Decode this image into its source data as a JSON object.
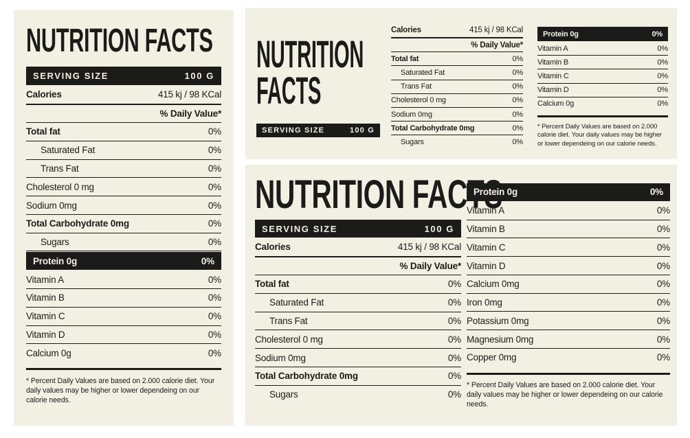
{
  "colors": {
    "page_bg": "#ffffff",
    "panel_bg": "#f2efe3",
    "ink": "#1b1b19",
    "bar_text": "#f4f1e4"
  },
  "left": {
    "title": "NUTRITION FACTS",
    "serving_label": "SERVING SIZE",
    "serving_value": "100 G",
    "calories_label": "Calories",
    "calories_value": "415 kj / 98 KCal",
    "daily_value_header": "% Daily Value*",
    "rows": [
      {
        "label": "Total fat",
        "value": "0%",
        "style": "bold"
      },
      {
        "label": "Saturated Fat",
        "value": "0%",
        "style": "indent"
      },
      {
        "label": "Trans Fat",
        "value": "0%",
        "style": "indent"
      },
      {
        "label": "Cholesterol 0 mg",
        "value": "0%",
        "style": ""
      },
      {
        "label": "Sodium 0mg",
        "value": "0%",
        "style": ""
      },
      {
        "label": "Total Carbohydrate 0mg",
        "value": "0%",
        "style": "bold"
      },
      {
        "label": "Sugars",
        "value": "0%",
        "style": "indent"
      },
      {
        "label": "Protein 0g",
        "value": "0%",
        "style": "inverted"
      },
      {
        "label": "Vitamin A",
        "value": "0%",
        "style": ""
      },
      {
        "label": "Vitamin B",
        "value": "0%",
        "style": ""
      },
      {
        "label": "Vitamin C",
        "value": "0%",
        "style": ""
      },
      {
        "label": "Vitamin D",
        "value": "0%",
        "style": ""
      },
      {
        "label": "Calcium 0g",
        "value": "0%",
        "style": ""
      }
    ],
    "footnote": "* Percent Daily Values are based on 2.000 calorie diet. Your daily values may be higher or lower dependeing on our calorie needs."
  },
  "top_right": {
    "title_line1": "NUTRITION",
    "title_line2": "FACTS",
    "serving_label": "SERVING SIZE",
    "serving_value": "100 G",
    "calories_label": "Calories",
    "calories_value": "415 kj / 98 KCal",
    "daily_value_header": "% Daily Value*",
    "mid_rows": [
      {
        "label": "Total fat",
        "value": "0%",
        "style": "bold"
      },
      {
        "label": "Saturated Fat",
        "value": "0%",
        "style": "indent"
      },
      {
        "label": "Trans Fat",
        "value": "0%",
        "style": "indent"
      },
      {
        "label": "Cholesterol 0 mg",
        "value": "0%",
        "style": ""
      },
      {
        "label": "Sodium 0mg",
        "value": "0%",
        "style": ""
      },
      {
        "label": "Total Carbohydrate 0mg",
        "value": "0%",
        "style": "bold"
      },
      {
        "label": "Sugars",
        "value": "0%",
        "style": "indent"
      }
    ],
    "right_rows": [
      {
        "label": "Protein 0g",
        "value": "0%",
        "style": "inverted"
      },
      {
        "label": "Vitamin A",
        "value": "0%",
        "style": ""
      },
      {
        "label": "Vitamin B",
        "value": "0%",
        "style": ""
      },
      {
        "label": "Vitamin C",
        "value": "0%",
        "style": ""
      },
      {
        "label": "Vitamin D",
        "value": "0%",
        "style": ""
      },
      {
        "label": "Calcium 0g",
        "value": "0%",
        "style": ""
      }
    ],
    "footnote": "* Percent Daily Values are based on 2.000 calorie diet. Your daily values may be higher or lower dependeing on our calorie needs."
  },
  "bottom_right": {
    "title": "NUTRITION FACTS",
    "serving_label": "SERVING SIZE",
    "serving_value": "100 G",
    "calories_label": "Calories",
    "calories_value": "415 kj / 98 KCal",
    "daily_value_header": "% Daily Value*",
    "left_rows": [
      {
        "label": "Total fat",
        "value": "0%",
        "style": "bold"
      },
      {
        "label": "Saturated Fat",
        "value": "0%",
        "style": "indent"
      },
      {
        "label": "Trans Fat",
        "value": "0%",
        "style": "indent"
      },
      {
        "label": "Cholesterol 0 mg",
        "value": "0%",
        "style": ""
      },
      {
        "label": "Sodium 0mg",
        "value": "0%",
        "style": ""
      },
      {
        "label": "Total Carbohydrate 0mg",
        "value": "0%",
        "style": "bold"
      },
      {
        "label": "Sugars",
        "value": "0%",
        "style": "indent"
      }
    ],
    "right_rows": [
      {
        "label": "Protein 0g",
        "value": "0%",
        "style": "inverted"
      },
      {
        "label": "Vitamin A",
        "value": "0%",
        "style": ""
      },
      {
        "label": "Vitamin B",
        "value": "0%",
        "style": ""
      },
      {
        "label": "Vitamin C",
        "value": "0%",
        "style": ""
      },
      {
        "label": "Vitamin D",
        "value": "0%",
        "style": ""
      },
      {
        "label": "Calcium 0mg",
        "value": "0%",
        "style": ""
      },
      {
        "label": "Iron 0mg",
        "value": "0%",
        "style": ""
      },
      {
        "label": "Potassium 0mg",
        "value": "0%",
        "style": ""
      },
      {
        "label": "Magnesium 0mg",
        "value": "0%",
        "style": ""
      },
      {
        "label": "Copper 0mg",
        "value": "0%",
        "style": ""
      }
    ],
    "footnote": "* Percent Daily Values are based on 2.000 calorie diet. Your daily values may be higher or lower dependeing on our calorie needs."
  }
}
